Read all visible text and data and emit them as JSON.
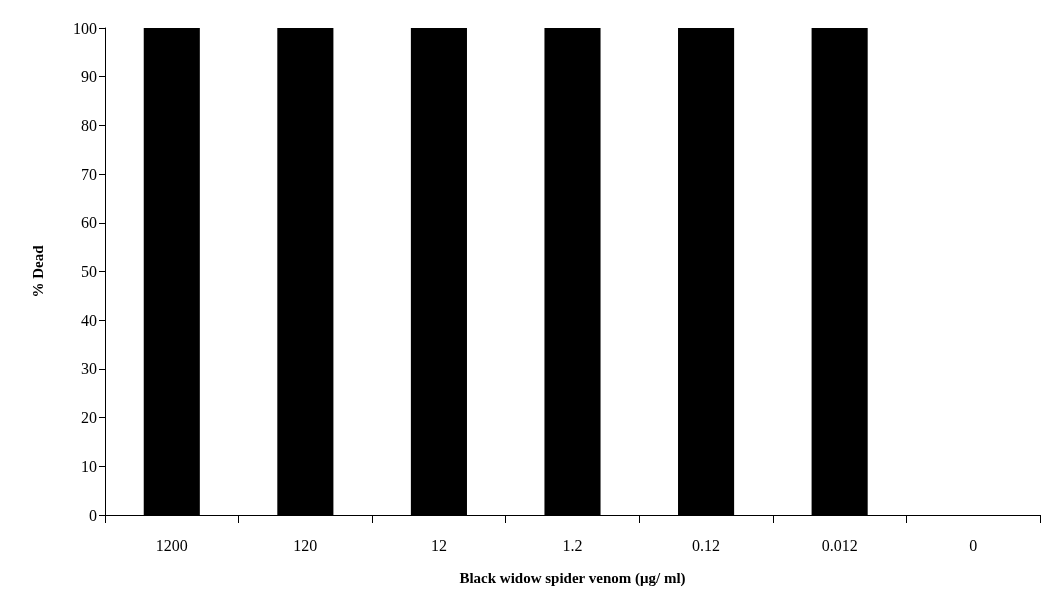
{
  "chart_data": {
    "type": "bar",
    "xlabel": "Black widow spider venom (μg/ ml)",
    "ylabel": "% Dead",
    "categories": [
      "1200",
      "120",
      "12",
      "1.2",
      "0.12",
      "0.012",
      "0"
    ],
    "values": [
      100,
      100,
      100,
      100,
      100,
      100,
      0
    ],
    "color": "#000000",
    "ylim": [
      0,
      100
    ],
    "yticks": [
      0,
      10,
      20,
      30,
      40,
      50,
      60,
      70,
      80,
      90,
      100
    ],
    "grid": false
  }
}
